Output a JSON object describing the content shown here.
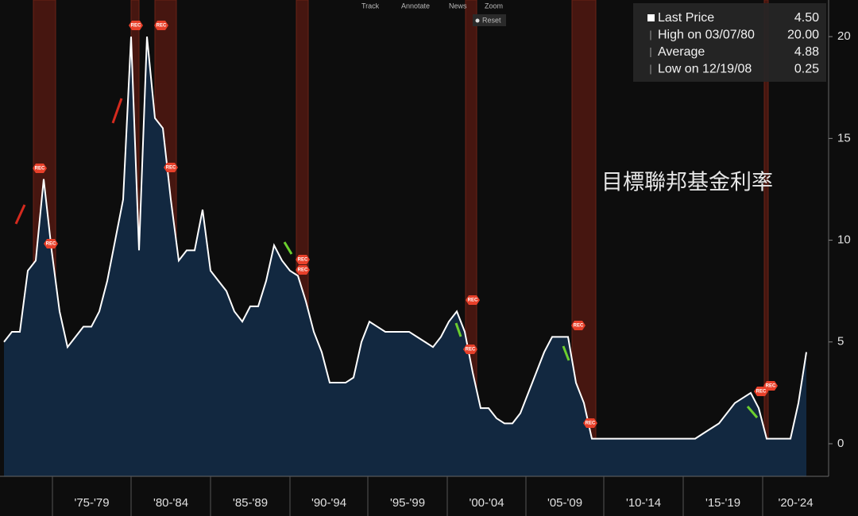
{
  "chart_data": {
    "type": "area",
    "title": "目標聯邦基金利率",
    "toolbar": [
      "Track",
      "Annotate",
      "News",
      "Zoom"
    ],
    "reset": "Reset",
    "rec_label": "REC",
    "values": [
      5,
      5.5,
      5.5,
      8.5,
      9,
      13,
      9.5,
      6.5,
      4.75,
      5.25,
      5.75,
      5.75,
      6.5,
      8,
      10,
      12,
      20,
      9.5,
      20,
      16,
      15.5,
      12,
      9,
      9.5,
      9.5,
      11.5,
      8.5,
      8,
      7.5,
      6.5,
      6,
      6.75,
      6.75,
      8,
      9.75,
      9,
      8.5,
      8.25,
      7,
      5.5,
      4.5,
      3,
      3,
      3,
      3.25,
      5,
      6,
      5.75,
      5.5,
      5.5,
      5.5,
      5.5,
      5.25,
      5,
      4.75,
      5.25,
      6,
      6.5,
      5.5,
      3.5,
      1.75,
      1.75,
      1.25,
      1,
      1,
      1.5,
      2.5,
      3.5,
      4.5,
      5.25,
      5.25,
      5.25,
      3,
      2,
      0.25,
      0.25,
      0.25,
      0.25,
      0.25,
      0.25,
      0.25,
      0.25,
      0.25,
      0.25,
      0.25,
      0.25,
      0.25,
      0.25,
      0.5,
      0.75,
      1,
      1.5,
      2,
      2.25,
      2.5,
      1.75,
      0.25,
      0.25,
      0.25,
      0.25,
      2,
      4.5
    ],
    "color": "#ffffff",
    "fill": "#122840",
    "ylim": [
      -1.6,
      21.8
    ],
    "yticks": [
      0,
      5,
      10,
      15,
      20
    ],
    "period_labels": [
      "'75-'79",
      "'80-'84",
      "'85-'89",
      "'90-'94",
      "'95-'99",
      "'00-'04",
      "'05-'09",
      "'10-'14",
      "'15-'19",
      "'20-'24"
    ],
    "legend": [
      {
        "label": "Last Price",
        "value": {
          "value": 4.5,
          "label": "4.50"
        }
      },
      {
        "label": "High on 03/07/80",
        "value": {
          "value": 20,
          "label": "20.00"
        }
      },
      {
        "label": "Average",
        "value": {
          "value": 4.88,
          "label": "4.88"
        }
      },
      {
        "label": "Low on 12/19/08",
        "value": {
          "value": 0.25,
          "label": "0.25"
        }
      }
    ]
  }
}
